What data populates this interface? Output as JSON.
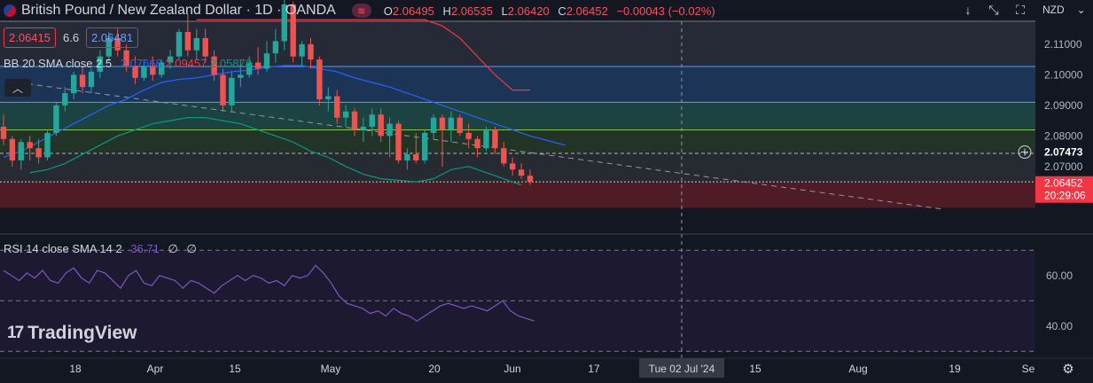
{
  "header": {
    "title": "British Pound / New Zealand Dollar · 1D · OANDA",
    "pill_icon": "waves-icon",
    "ohlc": [
      {
        "key": "O",
        "value": "2.06495"
      },
      {
        "key": "H",
        "value": "2.06535"
      },
      {
        "key": "L",
        "value": "2.06420"
      },
      {
        "key": "C",
        "value": "2.06452"
      }
    ],
    "change": "−0.00043 (−0.02%)"
  },
  "trade": {
    "bid": "2.06415",
    "spread": "6.6",
    "ask": "2.06481"
  },
  "toolbar": {
    "currency": "NZD"
  },
  "indicators": {
    "bb": {
      "label": "BB 20 SMA close 2.5",
      "basis": "2.07668",
      "upper": "2.09457",
      "lower": "2.05878"
    },
    "rsi": {
      "label": "RSI 14 close SMA 14 2",
      "value": "36.71",
      "extra1": "∅",
      "extra2": "∅"
    }
  },
  "logo": {
    "text": "TradingView"
  },
  "colors": {
    "up": "#26a69a",
    "down": "#ef5350",
    "bb_basis": "#2962ff",
    "bb_upper": "#f23645",
    "bb_lower": "#089981",
    "rsi": "#7e57c2",
    "bg": "#131722",
    "price_tag": "#f23645",
    "level_tag": "#ffffff"
  },
  "chart_data": {
    "type": "candlestick",
    "symbol": "GBPNZD",
    "timeframe": "1D",
    "price_axis": {
      "ticks": [
        "2.11000",
        "2.10000",
        "2.09000",
        "2.08000",
        "2.07000"
      ],
      "range": [
        2.0485,
        2.1175
      ]
    },
    "last_price_tag": "2.06452",
    "countdown": "20:29:06",
    "level_tag": "2.07473",
    "horizontal_levels": [
      2.1175,
      2.1027,
      2.091,
      2.082,
      2.0743,
      2.065
    ],
    "zones": [
      {
        "from": 2.1175,
        "to": 2.1027,
        "color": "#2a2e39"
      },
      {
        "from": 2.1027,
        "to": 2.091,
        "color": "#1e3a5f"
      },
      {
        "from": 2.091,
        "to": 2.082,
        "color": "#1f4a46"
      },
      {
        "from": 2.082,
        "to": 2.0743,
        "color": "#263a28"
      },
      {
        "from": 2.0743,
        "to": 2.065,
        "color": "#2a2e34"
      },
      {
        "from": 2.065,
        "to": 2.0565,
        "color": "#5a1c24"
      }
    ],
    "trendline": {
      "from": [
        2.0975,
        0
      ],
      "to": [
        2.056,
        1
      ],
      "style": "dashed"
    },
    "time_axis": {
      "ticks": [
        "18",
        "Apr",
        "15",
        "May",
        "20",
        "Jun",
        "17",
        "Tue 02 Jul '24",
        "15",
        "Aug",
        "19",
        "Se"
      ]
    },
    "candles": [
      [
        2.083,
        2.087,
        2.077,
        2.079
      ],
      [
        2.079,
        2.08,
        2.07,
        2.072
      ],
      [
        2.072,
        2.079,
        2.069,
        2.078
      ],
      [
        2.078,
        2.08,
        2.072,
        2.076
      ],
      [
        2.076,
        2.079,
        2.071,
        2.073
      ],
      [
        2.073,
        2.082,
        2.072,
        2.081
      ],
      [
        2.081,
        2.091,
        2.08,
        2.09
      ],
      [
        2.09,
        2.096,
        2.088,
        2.094
      ],
      [
        2.094,
        2.101,
        2.092,
        2.1
      ],
      [
        2.1,
        2.103,
        2.094,
        2.096
      ],
      [
        2.096,
        2.102,
        2.094,
        2.101
      ],
      [
        2.101,
        2.108,
        2.099,
        2.106
      ],
      [
        2.106,
        2.114,
        2.104,
        2.112
      ],
      [
        2.112,
        2.115,
        2.106,
        2.108
      ],
      [
        2.108,
        2.11,
        2.101,
        2.103
      ],
      [
        2.103,
        2.106,
        2.097,
        2.099
      ],
      [
        2.099,
        2.105,
        2.098,
        2.103
      ],
      [
        2.103,
        2.106,
        2.098,
        2.1
      ],
      [
        2.1,
        2.105,
        2.099,
        2.104
      ],
      [
        2.104,
        2.108,
        2.102,
        2.106
      ],
      [
        2.106,
        2.115,
        2.105,
        2.114
      ],
      [
        2.114,
        2.12,
        2.106,
        2.108
      ],
      [
        2.108,
        2.115,
        2.105,
        2.112
      ],
      [
        2.112,
        2.115,
        2.104,
        2.106
      ],
      [
        2.106,
        2.108,
        2.098,
        2.1
      ],
      [
        2.1,
        2.102,
        2.088,
        2.09
      ],
      [
        2.09,
        2.101,
        2.088,
        2.099
      ],
      [
        2.099,
        2.105,
        2.096,
        2.1
      ],
      [
        2.1,
        2.106,
        2.099,
        2.104
      ],
      [
        2.104,
        2.109,
        2.1,
        2.102
      ],
      [
        2.102,
        2.111,
        2.101,
        2.107
      ],
      [
        2.107,
        2.115,
        2.104,
        2.111
      ],
      [
        2.111,
        2.126,
        2.108,
        2.123
      ],
      [
        2.123,
        2.124,
        2.104,
        2.106
      ],
      [
        2.106,
        2.111,
        2.103,
        2.11
      ],
      [
        2.11,
        2.112,
        2.102,
        2.105
      ],
      [
        2.105,
        2.106,
        2.09,
        2.092
      ],
      [
        2.092,
        2.096,
        2.088,
        2.093
      ],
      [
        2.093,
        2.095,
        2.084,
        2.086
      ],
      [
        2.086,
        2.09,
        2.083,
        2.088
      ],
      [
        2.088,
        2.089,
        2.08,
        2.082
      ],
      [
        2.082,
        2.086,
        2.078,
        2.083
      ],
      [
        2.083,
        2.089,
        2.08,
        2.087
      ],
      [
        2.087,
        2.089,
        2.078,
        2.08
      ],
      [
        2.08,
        2.086,
        2.073,
        2.084
      ],
      [
        2.084,
        2.085,
        2.071,
        2.072
      ],
      [
        2.072,
        2.076,
        2.069,
        2.074
      ],
      [
        2.074,
        2.081,
        2.071,
        2.072
      ],
      [
        2.072,
        2.082,
        2.071,
        2.081
      ],
      [
        2.081,
        2.087,
        2.079,
        2.086
      ],
      [
        2.086,
        2.087,
        2.07,
        2.082
      ],
      [
        2.082,
        2.088,
        2.078,
        2.086
      ],
      [
        2.086,
        2.087,
        2.08,
        2.081
      ],
      [
        2.081,
        2.084,
        2.076,
        2.079
      ],
      [
        2.079,
        2.08,
        2.073,
        2.076
      ],
      [
        2.076,
        2.083,
        2.075,
        2.082
      ],
      [
        2.082,
        2.083,
        2.074,
        2.076
      ],
      [
        2.076,
        2.078,
        2.07,
        2.071
      ],
      [
        2.071,
        2.073,
        2.067,
        2.069
      ],
      [
        2.069,
        2.071,
        2.066,
        2.067
      ],
      [
        2.067,
        2.069,
        2.064,
        2.065
      ]
    ],
    "bb_basis": [
      2.073,
      2.075,
      2.078,
      2.081,
      2.084,
      2.087,
      2.09,
      2.092,
      2.095,
      2.0975,
      2.0985,
      2.099,
      2.1,
      2.101,
      2.1015,
      2.1025,
      2.103,
      2.103,
      2.102,
      2.101,
      2.099,
      2.0975,
      2.096,
      2.094,
      2.092,
      2.09,
      2.088,
      2.086,
      2.084,
      2.082,
      2.08,
      2.0785,
      2.077
    ],
    "bb_upper": [
      2.118,
      2.118,
      2.118,
      2.118,
      2.118,
      2.118,
      2.118,
      2.118,
      2.118,
      2.118,
      2.118,
      2.118,
      2.118,
      2.118,
      2.116,
      2.112,
      2.106,
      2.1,
      2.095,
      2.095
    ],
    "bb_lower": [
      2.068,
      2.069,
      2.071,
      2.074,
      2.077,
      2.08,
      2.082,
      2.084,
      2.085,
      2.086,
      2.086,
      2.085,
      2.084,
      2.082,
      2.08,
      2.078,
      2.075,
      2.073,
      2.07,
      2.0675,
      2.066,
      2.0655,
      2.065,
      2.066,
      2.069,
      2.07,
      2.068,
      2.066,
      2.064
    ],
    "rsi_axis": {
      "ticks": [
        "60.00",
        "40.00"
      ],
      "range": [
        28,
        75
      ]
    },
    "rsi": [
      62,
      60,
      58,
      61,
      59,
      62,
      58,
      57,
      61,
      63,
      59,
      57,
      62,
      61,
      58,
      55,
      60,
      62,
      57,
      56,
      60,
      59,
      58,
      55,
      58,
      57,
      55,
      53,
      56,
      58,
      60,
      58,
      60,
      59,
      57,
      58,
      56,
      60,
      59,
      60,
      64,
      61,
      57,
      52,
      49,
      48,
      47,
      45,
      46,
      44,
      47,
      45,
      44,
      42,
      44,
      46,
      48,
      49,
      48,
      47,
      48,
      47,
      46,
      48,
      50,
      46,
      44,
      43,
      42
    ],
    "crosshair_label": "Tue 02 Jul '24"
  }
}
